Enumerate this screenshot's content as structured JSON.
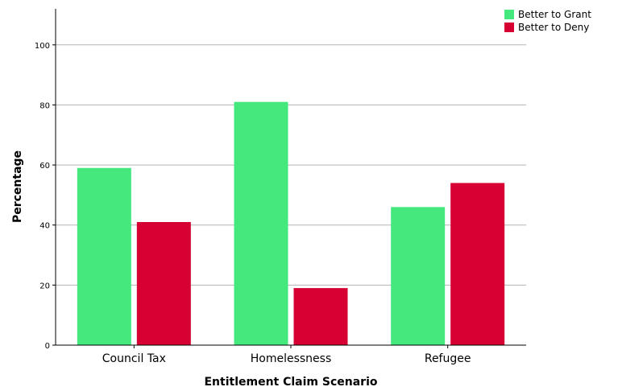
{
  "chart_data": {
    "type": "bar",
    "categories": [
      "Council Tax",
      "Homelessness",
      "Refugee"
    ],
    "series": [
      {
        "name": "Better to Grant",
        "values": [
          59,
          81,
          46
        ],
        "color": "#44e87c"
      },
      {
        "name": "Better to Deny",
        "values": [
          41,
          19,
          54
        ],
        "color": "#d60032"
      }
    ],
    "xlabel": "Entitlement Claim Scenario",
    "ylabel": "Percentage",
    "ylim": [
      0,
      112
    ],
    "yticks": [
      0,
      20,
      40,
      60,
      80,
      100
    ],
    "grid": true,
    "legend_position": "top-right"
  }
}
